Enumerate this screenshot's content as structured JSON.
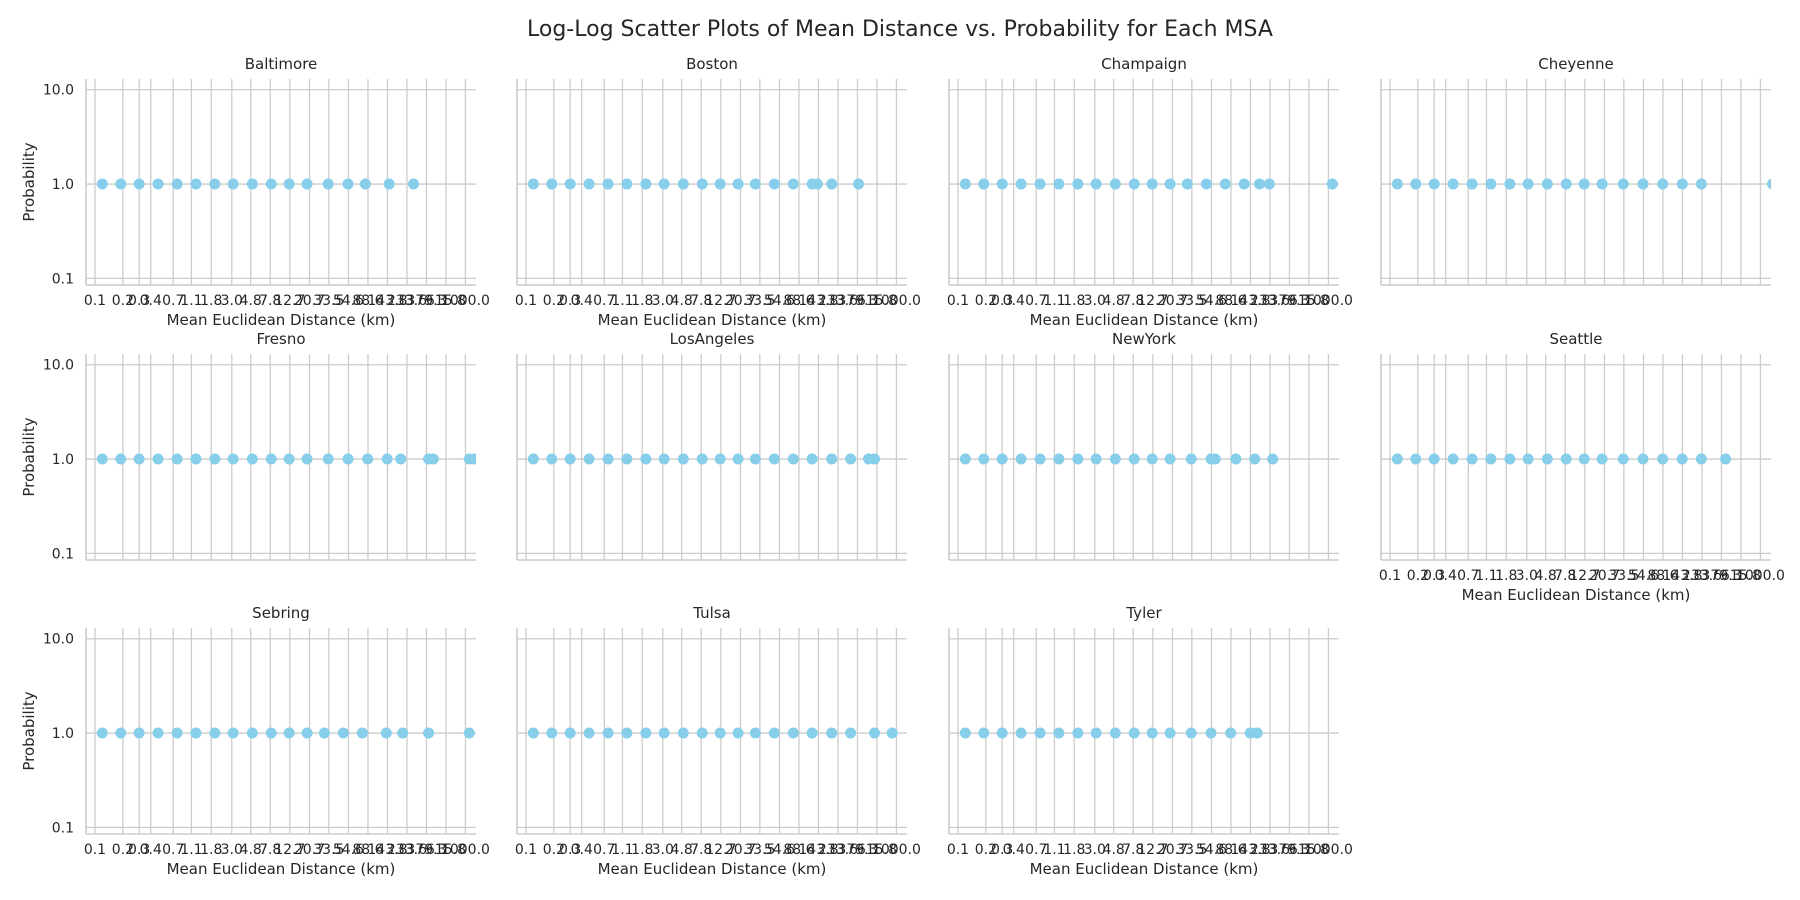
{
  "figure": {
    "title": "Log-Log Scatter Plots of Mean Distance vs. Probability for Each MSA"
  },
  "colors": {
    "marker": "#87ceeb",
    "grid": "#cccccc",
    "text": "#262626"
  },
  "chart_data": {
    "type": "scatter",
    "xscale": "log",
    "yscale": "log",
    "xlabel": "Mean Euclidean Distance (km)",
    "ylabel": "Probability",
    "x_ticks": [
      0.1,
      0.2,
      0.3,
      0.4,
      0.7,
      1.1,
      1.8,
      3.0,
      4.8,
      7.8,
      12.7,
      20.7,
      33.5,
      54.6,
      88.6,
      143.8,
      233.6,
      379.3,
      615.8,
      1000.0
    ],
    "x_tick_labels": [
      "0.1",
      "0.2",
      "0.3",
      "0.4",
      "0.7",
      "1.1",
      "1.8",
      "3.0",
      "4.8",
      "7.8",
      "12.7",
      "20.7",
      "33.5",
      "54.6",
      "88.6",
      "143.8",
      "233.6",
      "379.3",
      "615.8",
      "1000.0"
    ],
    "y_ticks": [
      0.1,
      1.0,
      10.0
    ],
    "y_tick_labels": [
      "0.1",
      "1.0",
      "10.0"
    ],
    "xlim": [
      0.08,
      1300
    ],
    "ylim": [
      0.085,
      13
    ],
    "grid": true,
    "panels": [
      {
        "name": "Baltimore",
        "x": [
          0.12,
          0.19,
          0.3,
          0.48,
          0.77,
          1.23,
          1.97,
          3.1,
          5.0,
          8.0,
          12.5,
          19.5,
          33.0,
          54.0,
          83.0,
          150.0,
          275.0
        ],
        "y": [
          1,
          1,
          1,
          1,
          1,
          1,
          1,
          1,
          1,
          1,
          1,
          1,
          1,
          1,
          1,
          1,
          1
        ]
      },
      {
        "name": "Boston",
        "x": [
          0.12,
          0.19,
          0.3,
          0.48,
          0.77,
          1.23,
          1.97,
          3.1,
          5.0,
          8.0,
          12.5,
          19.5,
          30.0,
          48.0,
          77.0,
          123.0,
          140.0,
          200.0,
          390.0
        ],
        "y": [
          1,
          1,
          1,
          1,
          1,
          1,
          1,
          1,
          1,
          1,
          1,
          1,
          1,
          1,
          1,
          1,
          1,
          1,
          1
        ]
      },
      {
        "name": "Champaign",
        "x": [
          0.12,
          0.19,
          0.3,
          0.48,
          0.77,
          1.23,
          1.97,
          3.1,
          5.0,
          8.0,
          12.5,
          19.5,
          30.0,
          48.0,
          77.0,
          123.0,
          180.0,
          230.0,
          1100.0,
          1550.0
        ],
        "y": [
          1,
          1,
          1,
          1,
          1,
          1,
          1,
          1,
          1,
          1,
          1,
          1,
          1,
          1,
          1,
          1,
          1,
          1,
          1,
          1
        ]
      },
      {
        "name": "Cheyenne",
        "x": [
          0.12,
          0.19,
          0.3,
          0.48,
          0.77,
          1.23,
          1.97,
          3.1,
          5.0,
          8.0,
          12.5,
          19.5,
          33.0,
          54.0,
          88.0,
          143.0,
          230.0,
          1350.0,
          1400.0
        ],
        "y": [
          1,
          1,
          1,
          1,
          1,
          1,
          1,
          1,
          1,
          1,
          1,
          1,
          1,
          1,
          1,
          1,
          1,
          1,
          1
        ]
      },
      {
        "name": "Fresno",
        "x": [
          0.12,
          0.19,
          0.3,
          0.48,
          0.77,
          1.23,
          1.97,
          3.1,
          5.0,
          8.0,
          12.5,
          19.5,
          33.0,
          54.0,
          88.0,
          143.0,
          200.0,
          400.0,
          450.0,
          1100.0,
          1250.0
        ],
        "y": [
          1,
          1,
          1,
          1,
          1,
          1,
          1,
          1,
          1,
          1,
          1,
          1,
          1,
          1,
          1,
          1,
          1,
          1,
          1,
          1,
          1
        ]
      },
      {
        "name": "LosAngeles",
        "x": [
          0.12,
          0.19,
          0.3,
          0.48,
          0.77,
          1.23,
          1.97,
          3.1,
          5.0,
          8.0,
          12.5,
          19.5,
          30.0,
          48.0,
          77.0,
          123.0,
          200.0,
          320.0,
          500.0,
          580.0
        ],
        "y": [
          1,
          1,
          1,
          1,
          1,
          1,
          1,
          1,
          1,
          1,
          1,
          1,
          1,
          1,
          1,
          1,
          1,
          1,
          1,
          1
        ]
      },
      {
        "name": "NewYork",
        "x": [
          0.12,
          0.19,
          0.3,
          0.48,
          0.77,
          1.23,
          1.97,
          3.1,
          5.0,
          8.0,
          12.5,
          19.5,
          33.0,
          54.0,
          60.0,
          100.0,
          160.0,
          250.0
        ],
        "y": [
          1,
          1,
          1,
          1,
          1,
          1,
          1,
          1,
          1,
          1,
          1,
          1,
          1,
          1,
          1,
          1,
          1,
          1
        ]
      },
      {
        "name": "Seattle",
        "x": [
          0.12,
          0.19,
          0.3,
          0.48,
          0.77,
          1.23,
          1.97,
          3.1,
          5.0,
          8.0,
          12.5,
          19.5,
          33.0,
          54.0,
          88.0,
          143.0,
          230.0,
          420.0
        ],
        "y": [
          1,
          1,
          1,
          1,
          1,
          1,
          1,
          1,
          1,
          1,
          1,
          1,
          1,
          1,
          1,
          1,
          1,
          1
        ]
      },
      {
        "name": "Sebring",
        "x": [
          0.12,
          0.19,
          0.3,
          0.48,
          0.77,
          1.23,
          1.97,
          3.1,
          5.0,
          8.0,
          12.5,
          19.5,
          30.0,
          48.0,
          77.0,
          140.0,
          210.0,
          400.0,
          1100.0
        ],
        "y": [
          1,
          1,
          1,
          1,
          1,
          1,
          1,
          1,
          1,
          1,
          1,
          1,
          1,
          1,
          1,
          1,
          1,
          1,
          1
        ]
      },
      {
        "name": "Tulsa",
        "x": [
          0.12,
          0.19,
          0.3,
          0.48,
          0.77,
          1.23,
          1.97,
          3.1,
          5.0,
          8.0,
          12.5,
          19.5,
          30.0,
          48.0,
          77.0,
          123.0,
          200.0,
          320.0,
          580.0,
          900.0
        ],
        "y": [
          1,
          1,
          1,
          1,
          1,
          1,
          1,
          1,
          1,
          1,
          1,
          1,
          1,
          1,
          1,
          1,
          1,
          1,
          1,
          1
        ]
      },
      {
        "name": "Tyler",
        "x": [
          0.12,
          0.19,
          0.3,
          0.48,
          0.77,
          1.23,
          1.97,
          3.1,
          5.0,
          8.0,
          12.5,
          19.5,
          33.0,
          54.0,
          88.0,
          143.0,
          170.0
        ],
        "y": [
          1,
          1,
          1,
          1,
          1,
          1,
          1,
          1,
          1,
          1,
          1,
          1,
          1,
          1,
          1,
          1,
          1
        ]
      }
    ]
  }
}
